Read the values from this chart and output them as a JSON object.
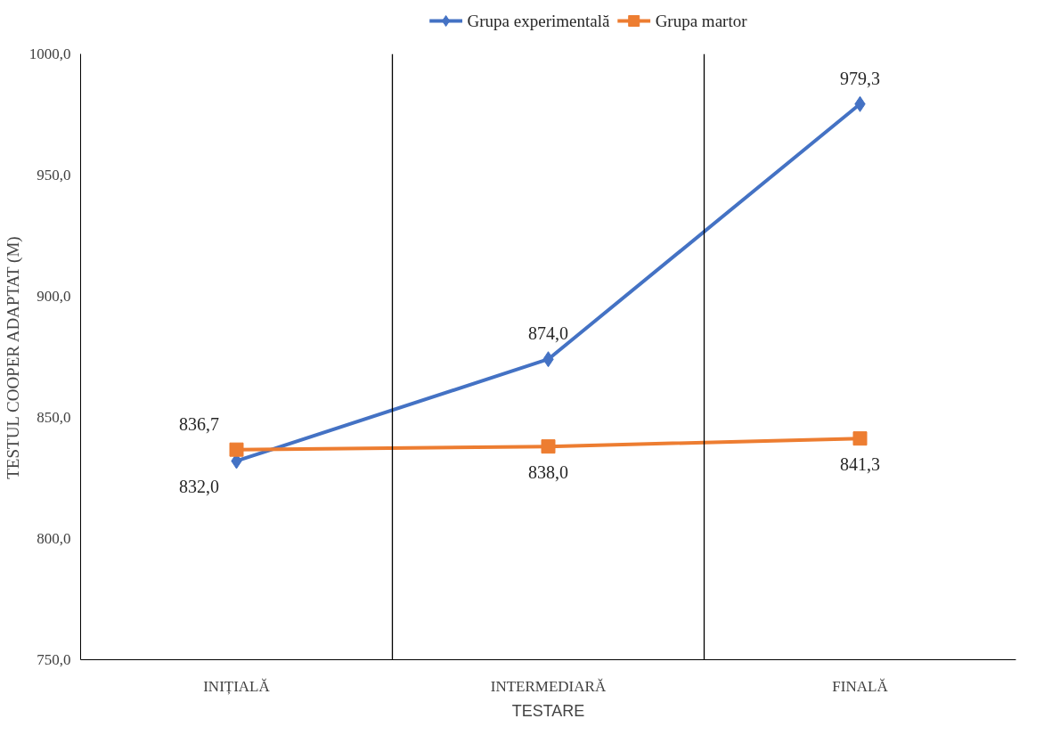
{
  "chart_data": {
    "type": "line",
    "xlabel": "TESTARE",
    "ylabel": "TESTUL COOPER ADAPTAT (M)",
    "categories": [
      "INIȚIALĂ",
      "INTERMEDIARĂ",
      "FINALĂ"
    ],
    "ylim": [
      750,
      1000
    ],
    "yticks": [
      {
        "value": 750,
        "label": "750,0"
      },
      {
        "value": 800,
        "label": "800,0"
      },
      {
        "value": 850,
        "label": "850,0"
      },
      {
        "value": 900,
        "label": "900,0"
      },
      {
        "value": 950,
        "label": "950,0"
      },
      {
        "value": 1000,
        "label": "1000,0"
      }
    ],
    "grid": "x",
    "legend": "top",
    "series": [
      {
        "name": "Grupa experimentală",
        "color": "#4472c4",
        "marker": "diamond",
        "values": [
          832.0,
          874.0,
          979.3
        ],
        "value_labels": [
          "832,0",
          "874,0",
          "979,3"
        ]
      },
      {
        "name": "Grupa martor",
        "color": "#ed7d31",
        "marker": "square",
        "values": [
          836.7,
          838.0,
          841.3
        ],
        "value_labels": [
          "836,7",
          "838,0",
          "841,3"
        ]
      }
    ]
  }
}
